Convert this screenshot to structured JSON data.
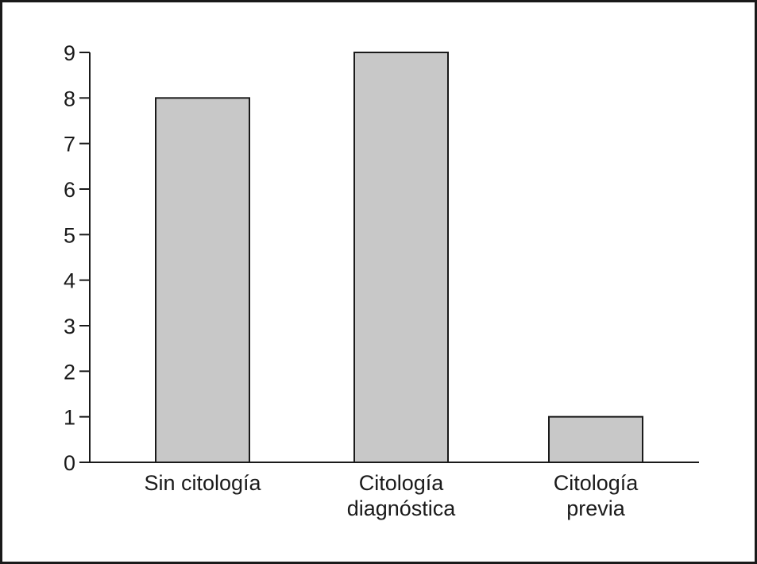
{
  "chart_data": {
    "type": "bar",
    "categories": [
      [
        "Sin citología"
      ],
      [
        "Citología",
        "diagnóstica"
      ],
      [
        "Citología",
        "previa"
      ]
    ],
    "values": [
      8,
      9,
      1
    ],
    "title": "",
    "xlabel": "",
    "ylabel": "",
    "ylim": [
      0,
      9
    ],
    "yticks": [
      0,
      1,
      2,
      3,
      4,
      5,
      6,
      7,
      8,
      9
    ],
    "grid": false,
    "bar_color": "#c8c8c8",
    "border_color": "#1a1a1a"
  }
}
